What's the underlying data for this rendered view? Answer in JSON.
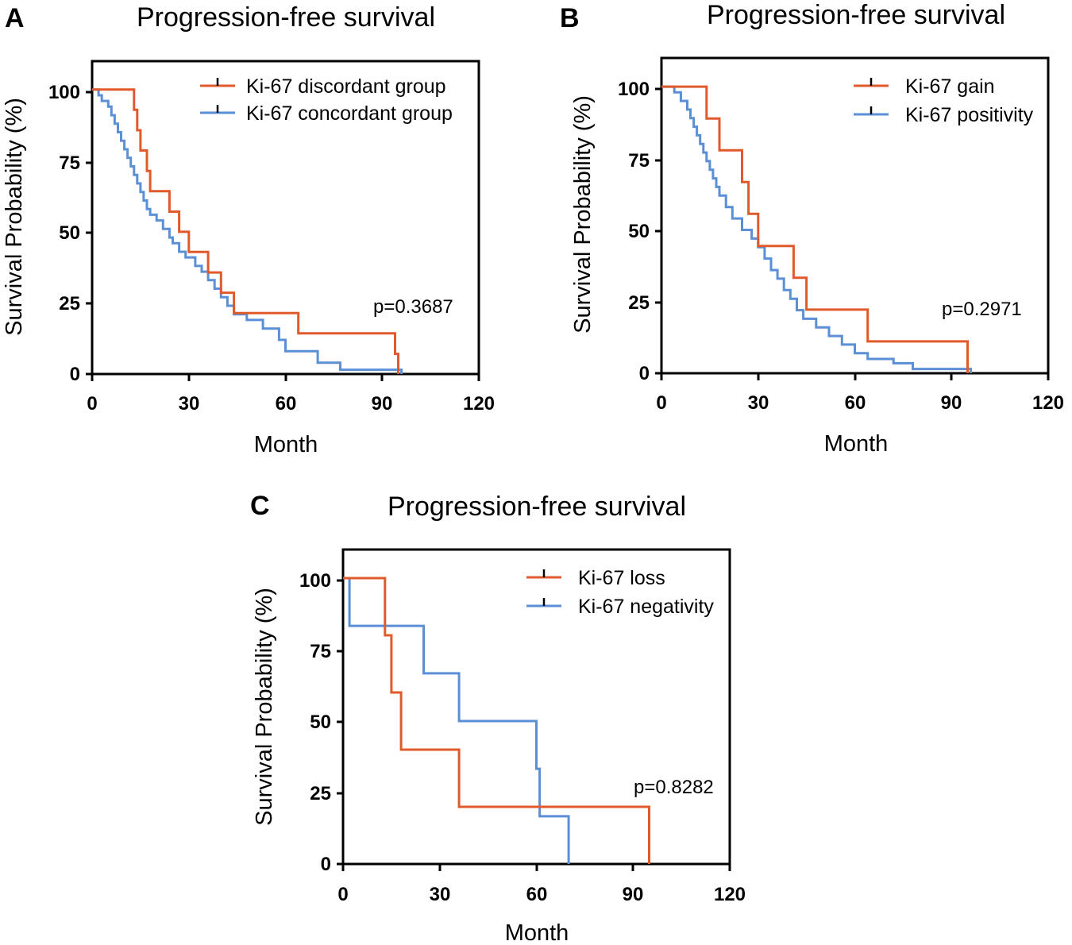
{
  "chart_data": [
    {
      "panel": "A",
      "type": "line",
      "title": "Progression-free survival",
      "xlabel": "Month",
      "ylabel": "Survival Probability (%)",
      "xlim": [
        0,
        120
      ],
      "ylim": [
        0,
        110
      ],
      "xticks": [
        0,
        30,
        60,
        90,
        120
      ],
      "yticks": [
        0,
        25,
        50,
        75,
        100
      ],
      "legend_position": "top-right",
      "annotation": "p=0.3687",
      "series": [
        {
          "name": "Ki-67 discordant group",
          "color": "#E05A2B",
          "x": [
            0,
            13,
            14,
            15,
            17,
            18,
            24,
            27,
            30,
            36,
            40,
            44,
            64,
            94,
            95
          ],
          "y": [
            100,
            92.9,
            85.7,
            78.6,
            71.4,
            64.3,
            57.1,
            50,
            42.9,
            35.7,
            28.6,
            21.4,
            14.3,
            7.1,
            0
          ]
        },
        {
          "name": "Ki-67 concordant group",
          "color": "#5B8FD6",
          "x": [
            0,
            2,
            3,
            5,
            6,
            7,
            8,
            9,
            10,
            11,
            12,
            13,
            14,
            15,
            16,
            17,
            18,
            20,
            22,
            24,
            25,
            27,
            29,
            32,
            34,
            36,
            38,
            40,
            42,
            44,
            48,
            53,
            58,
            60,
            70,
            77,
            96
          ],
          "y": [
            100,
            98,
            96,
            94,
            91,
            88,
            85,
            82,
            79,
            76,
            73,
            70,
            67,
            64,
            61,
            58,
            56,
            54,
            51,
            48,
            46,
            43,
            41,
            38,
            36,
            33,
            30,
            27,
            24,
            21,
            19,
            16,
            12,
            8,
            4,
            1.5,
            0
          ]
        }
      ]
    },
    {
      "panel": "B",
      "type": "line",
      "title": "Progression-free survival",
      "xlabel": "Month",
      "ylabel": "Survival Probability (%)",
      "xlim": [
        0,
        120
      ],
      "ylim": [
        0,
        110
      ],
      "xticks": [
        0,
        30,
        60,
        90,
        120
      ],
      "yticks": [
        0,
        25,
        50,
        75,
        100
      ],
      "legend_position": "top-right",
      "annotation": "p=0.2971",
      "series": [
        {
          "name": "Ki-67 gain",
          "color": "#E05A2B",
          "x": [
            0,
            14,
            18,
            25,
            27,
            30,
            41,
            45,
            64,
            95
          ],
          "y": [
            100,
            88.9,
            77.8,
            66.7,
            55.6,
            44.4,
            33.3,
            22.2,
            11.1,
            0
          ]
        },
        {
          "name": "Ki-67 positivity",
          "color": "#5B8FD6",
          "x": [
            0,
            4,
            6,
            8,
            9,
            10,
            11,
            12,
            13,
            14,
            15,
            16,
            17,
            18,
            20,
            22,
            25,
            28,
            30,
            32,
            34,
            36,
            38,
            40,
            42,
            44,
            48,
            52,
            56,
            60,
            64,
            72,
            78,
            96
          ],
          "y": [
            100,
            98,
            95,
            92,
            89,
            86,
            83,
            80,
            77,
            74,
            71,
            68,
            65,
            62,
            58,
            54,
            50,
            47,
            44,
            40,
            36,
            33,
            29,
            26,
            22,
            19,
            16,
            13,
            10,
            7,
            5,
            3.5,
            1.5,
            0
          ]
        }
      ]
    },
    {
      "panel": "C",
      "type": "line",
      "title": "Progression-free survival",
      "xlabel": "Month",
      "ylabel": "Survival Probability (%)",
      "xlim": [
        0,
        120
      ],
      "ylim": [
        0,
        110
      ],
      "xticks": [
        0,
        30,
        60,
        90,
        120
      ],
      "yticks": [
        0,
        25,
        50,
        75,
        100
      ],
      "legend_position": "top-right",
      "annotation": "p=0.8282",
      "series": [
        {
          "name": "Ki-67 loss",
          "color": "#E05A2B",
          "x": [
            0,
            13,
            15,
            18,
            36,
            95
          ],
          "y": [
            100,
            80,
            60,
            40,
            20,
            0
          ]
        },
        {
          "name": "Ki-67 negativity",
          "color": "#5B8FD6",
          "x": [
            0,
            2,
            25,
            36,
            60,
            61,
            70
          ],
          "y": [
            100,
            83.3,
            66.7,
            50,
            33.3,
            16.7,
            0
          ]
        }
      ]
    }
  ]
}
